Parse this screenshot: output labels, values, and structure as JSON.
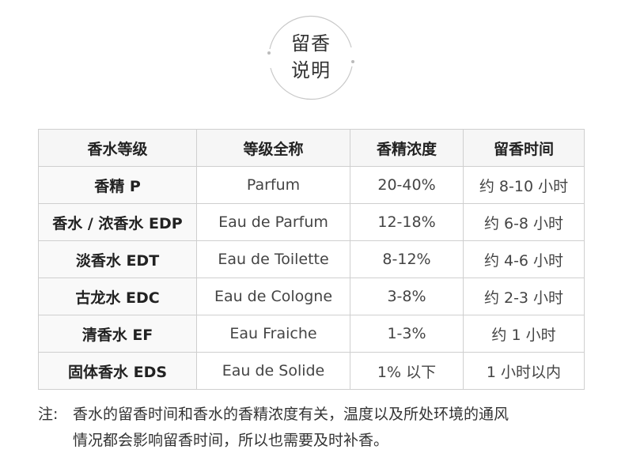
{
  "badge": {
    "line1": "留香",
    "line2": "说明"
  },
  "table": {
    "headers": [
      "香水等级",
      "等级全称",
      "香精浓度",
      "留香时间"
    ],
    "rows": [
      [
        "香精 P",
        "Parfum",
        "20-40%",
        "约 8-10 小时"
      ],
      [
        "香水 / 浓香水 EDP",
        "Eau de Parfum",
        "12-18%",
        "约 6-8 小时"
      ],
      [
        "淡香水 EDT",
        "Eau de Toilette",
        "8-12%",
        "约 4-6 小时"
      ],
      [
        "古龙水 EDC",
        "Eau de Cologne",
        "3-8%",
        "约 2-3 小时"
      ],
      [
        "清香水 EF",
        "Eau Fraiche",
        "1-3%",
        "约 1 小时"
      ],
      [
        "固体香水 EDS",
        "Eau de Solide",
        "1% 以下",
        "1 小时以内"
      ]
    ]
  },
  "note": {
    "label": "注:",
    "line1": "香水的留香时间和香水的香精浓度有关，温度以及所处环境的通风",
    "line2": "情况都会影响留香时间，所以也需要及时补香。"
  }
}
